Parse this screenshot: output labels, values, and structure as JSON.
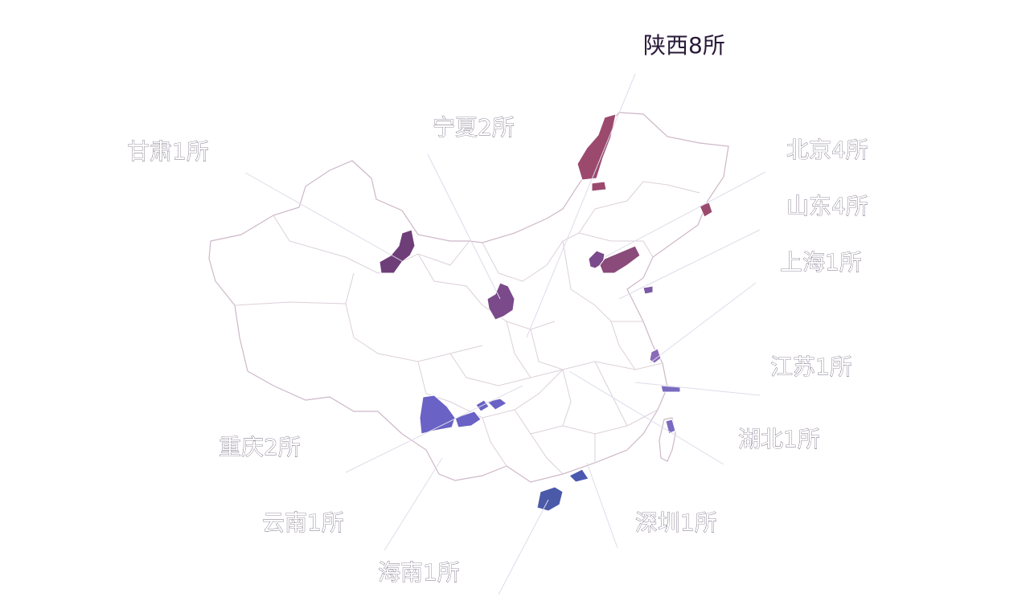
{
  "labels": {
    "shaanxi": "陕西8所",
    "ningxia": "宁夏2所",
    "gansu": "甘肃1所",
    "beijing": "北京4所",
    "shandong": "山东4所",
    "shanghai": "上海1所",
    "jiangsu": "江苏1所",
    "hubei": "湖北1所",
    "chongqing": "重庆2所",
    "yunnan": "云南1所",
    "hainan": "海南1所",
    "shenzhen": "深圳1所"
  },
  "colors": {
    "shaanxi": "#9b4a6e",
    "gansu": "#6e3e78",
    "ningxia": "#7a4a8a",
    "beijing": "#7a4a8a",
    "shandong": "#8a4a7a",
    "shanghai": "#7a5aa6",
    "jiangsu": "#8a6ab8",
    "hubei": "#7a6ac0",
    "chongqing": "#6a62c4",
    "yunnan": "#6a62c4",
    "hainan": "#4a5aa8",
    "shenzhen": "#4a58b0",
    "outline": "#cdb8c8"
  }
}
